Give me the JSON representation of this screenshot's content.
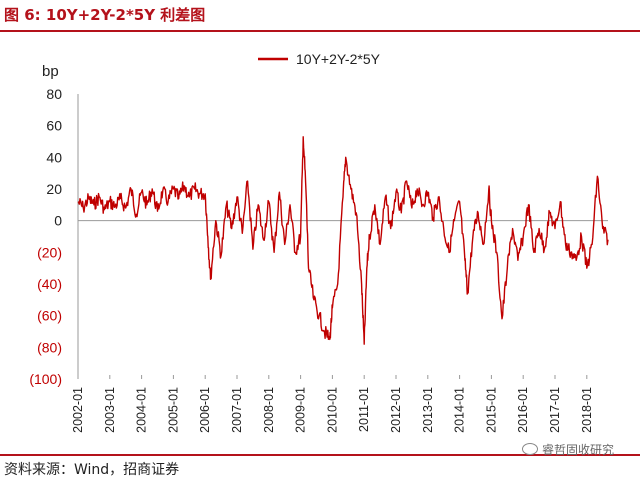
{
  "figure": {
    "title": "图 6:  10Y+2Y-2*5Y 利差图",
    "source": "资料来源：Wind，招商证券",
    "watermark": "睿哲固收研究"
  },
  "colors": {
    "accent": "#b4121b",
    "series": "#c00000",
    "negative_label": "#c00000",
    "axis": "#999999"
  },
  "chart_data": {
    "type": "line",
    "title": "",
    "xlabel": "",
    "ylabel": "bp",
    "ylim": [
      -100,
      80
    ],
    "xlim": [
      "2002-01",
      "2018-09"
    ],
    "yticks": [
      {
        "value": 80,
        "label": "80"
      },
      {
        "value": 60,
        "label": "60"
      },
      {
        "value": 40,
        "label": "40"
      },
      {
        "value": 20,
        "label": "20"
      },
      {
        "value": 0,
        "label": "0"
      },
      {
        "value": -20,
        "label": "(20)"
      },
      {
        "value": -40,
        "label": "(40)"
      },
      {
        "value": -60,
        "label": "(60)"
      },
      {
        "value": -80,
        "label": "(80)"
      },
      {
        "value": -100,
        "label": "(100)"
      }
    ],
    "xticks": [
      "2002-01",
      "2003-01",
      "2004-01",
      "2005-01",
      "2006-01",
      "2007-01",
      "2008-01",
      "2009-01",
      "2010-01",
      "2011-01",
      "2012-01",
      "2013-01",
      "2014-01",
      "2015-01",
      "2016-01",
      "2017-01",
      "2018-01"
    ],
    "legend_position": "top-center",
    "grid": false,
    "series": [
      {
        "name": "10Y+2Y-2*5Y",
        "points": [
          [
            "2002-01",
            12
          ],
          [
            "2002-03",
            8
          ],
          [
            "2002-05",
            14
          ],
          [
            "2002-07",
            10
          ],
          [
            "2002-09",
            15
          ],
          [
            "2002-11",
            7
          ],
          [
            "2003-01",
            12
          ],
          [
            "2003-03",
            9
          ],
          [
            "2003-05",
            14
          ],
          [
            "2003-07",
            8
          ],
          [
            "2003-09",
            20
          ],
          [
            "2003-11",
            4
          ],
          [
            "2004-01",
            18
          ],
          [
            "2004-03",
            10
          ],
          [
            "2004-05",
            20
          ],
          [
            "2004-07",
            6
          ],
          [
            "2004-09",
            19
          ],
          [
            "2004-11",
            12
          ],
          [
            "2005-01",
            20
          ],
          [
            "2005-03",
            14
          ],
          [
            "2005-05",
            22
          ],
          [
            "2005-07",
            15
          ],
          [
            "2005-09",
            20
          ],
          [
            "2005-11",
            17
          ],
          [
            "2006-01",
            17
          ],
          [
            "2006-02",
            -10
          ],
          [
            "2006-03",
            -37
          ],
          [
            "2006-05",
            0
          ],
          [
            "2006-07",
            -22
          ],
          [
            "2006-09",
            10
          ],
          [
            "2006-11",
            -5
          ],
          [
            "2007-01",
            15
          ],
          [
            "2007-03",
            -8
          ],
          [
            "2007-05",
            25
          ],
          [
            "2007-07",
            -18
          ],
          [
            "2007-09",
            10
          ],
          [
            "2007-11",
            -12
          ],
          [
            "2008-01",
            12
          ],
          [
            "2008-03",
            -20
          ],
          [
            "2008-05",
            18
          ],
          [
            "2008-07",
            -15
          ],
          [
            "2008-09",
            10
          ],
          [
            "2008-11",
            -20
          ],
          [
            "2009-01",
            -10
          ],
          [
            "2009-02",
            53
          ],
          [
            "2009-03",
            20
          ],
          [
            "2009-04",
            -30
          ],
          [
            "2009-06",
            -50
          ],
          [
            "2009-08",
            -60
          ],
          [
            "2009-10",
            -70
          ],
          [
            "2009-12",
            -75
          ],
          [
            "2010-01",
            -55
          ],
          [
            "2010-03",
            -40
          ],
          [
            "2010-05",
            15
          ],
          [
            "2010-06",
            40
          ],
          [
            "2010-08",
            20
          ],
          [
            "2010-10",
            5
          ],
          [
            "2010-12",
            -40
          ],
          [
            "2011-01",
            -78
          ],
          [
            "2011-02",
            -30
          ],
          [
            "2011-03",
            -10
          ],
          [
            "2011-05",
            10
          ],
          [
            "2011-07",
            -15
          ],
          [
            "2011-09",
            15
          ],
          [
            "2011-11",
            -5
          ],
          [
            "2012-01",
            18
          ],
          [
            "2012-03",
            5
          ],
          [
            "2012-05",
            25
          ],
          [
            "2012-07",
            8
          ],
          [
            "2012-09",
            20
          ],
          [
            "2012-11",
            10
          ],
          [
            "2013-01",
            18
          ],
          [
            "2013-03",
            2
          ],
          [
            "2013-05",
            15
          ],
          [
            "2013-07",
            -5
          ],
          [
            "2013-09",
            -20
          ],
          [
            "2013-11",
            0
          ],
          [
            "2014-01",
            12
          ],
          [
            "2014-03",
            -25
          ],
          [
            "2014-04",
            -46
          ],
          [
            "2014-06",
            -10
          ],
          [
            "2014-08",
            5
          ],
          [
            "2014-10",
            -15
          ],
          [
            "2014-12",
            20
          ],
          [
            "2015-01",
            0
          ],
          [
            "2015-03",
            -20
          ],
          [
            "2015-05",
            -62
          ],
          [
            "2015-07",
            -30
          ],
          [
            "2015-09",
            -5
          ],
          [
            "2015-11",
            -25
          ],
          [
            "2016-01",
            -10
          ],
          [
            "2016-03",
            10
          ],
          [
            "2016-05",
            -20
          ],
          [
            "2016-07",
            -5
          ],
          [
            "2016-09",
            -18
          ],
          [
            "2016-11",
            5
          ],
          [
            "2017-01",
            -5
          ],
          [
            "2017-03",
            12
          ],
          [
            "2017-05",
            -15
          ],
          [
            "2017-07",
            -20
          ],
          [
            "2017-09",
            -25
          ],
          [
            "2017-11",
            -10
          ],
          [
            "2018-01",
            -30
          ],
          [
            "2018-03",
            -15
          ],
          [
            "2018-05",
            28
          ],
          [
            "2018-07",
            -5
          ],
          [
            "2018-09",
            -12
          ]
        ]
      }
    ]
  }
}
